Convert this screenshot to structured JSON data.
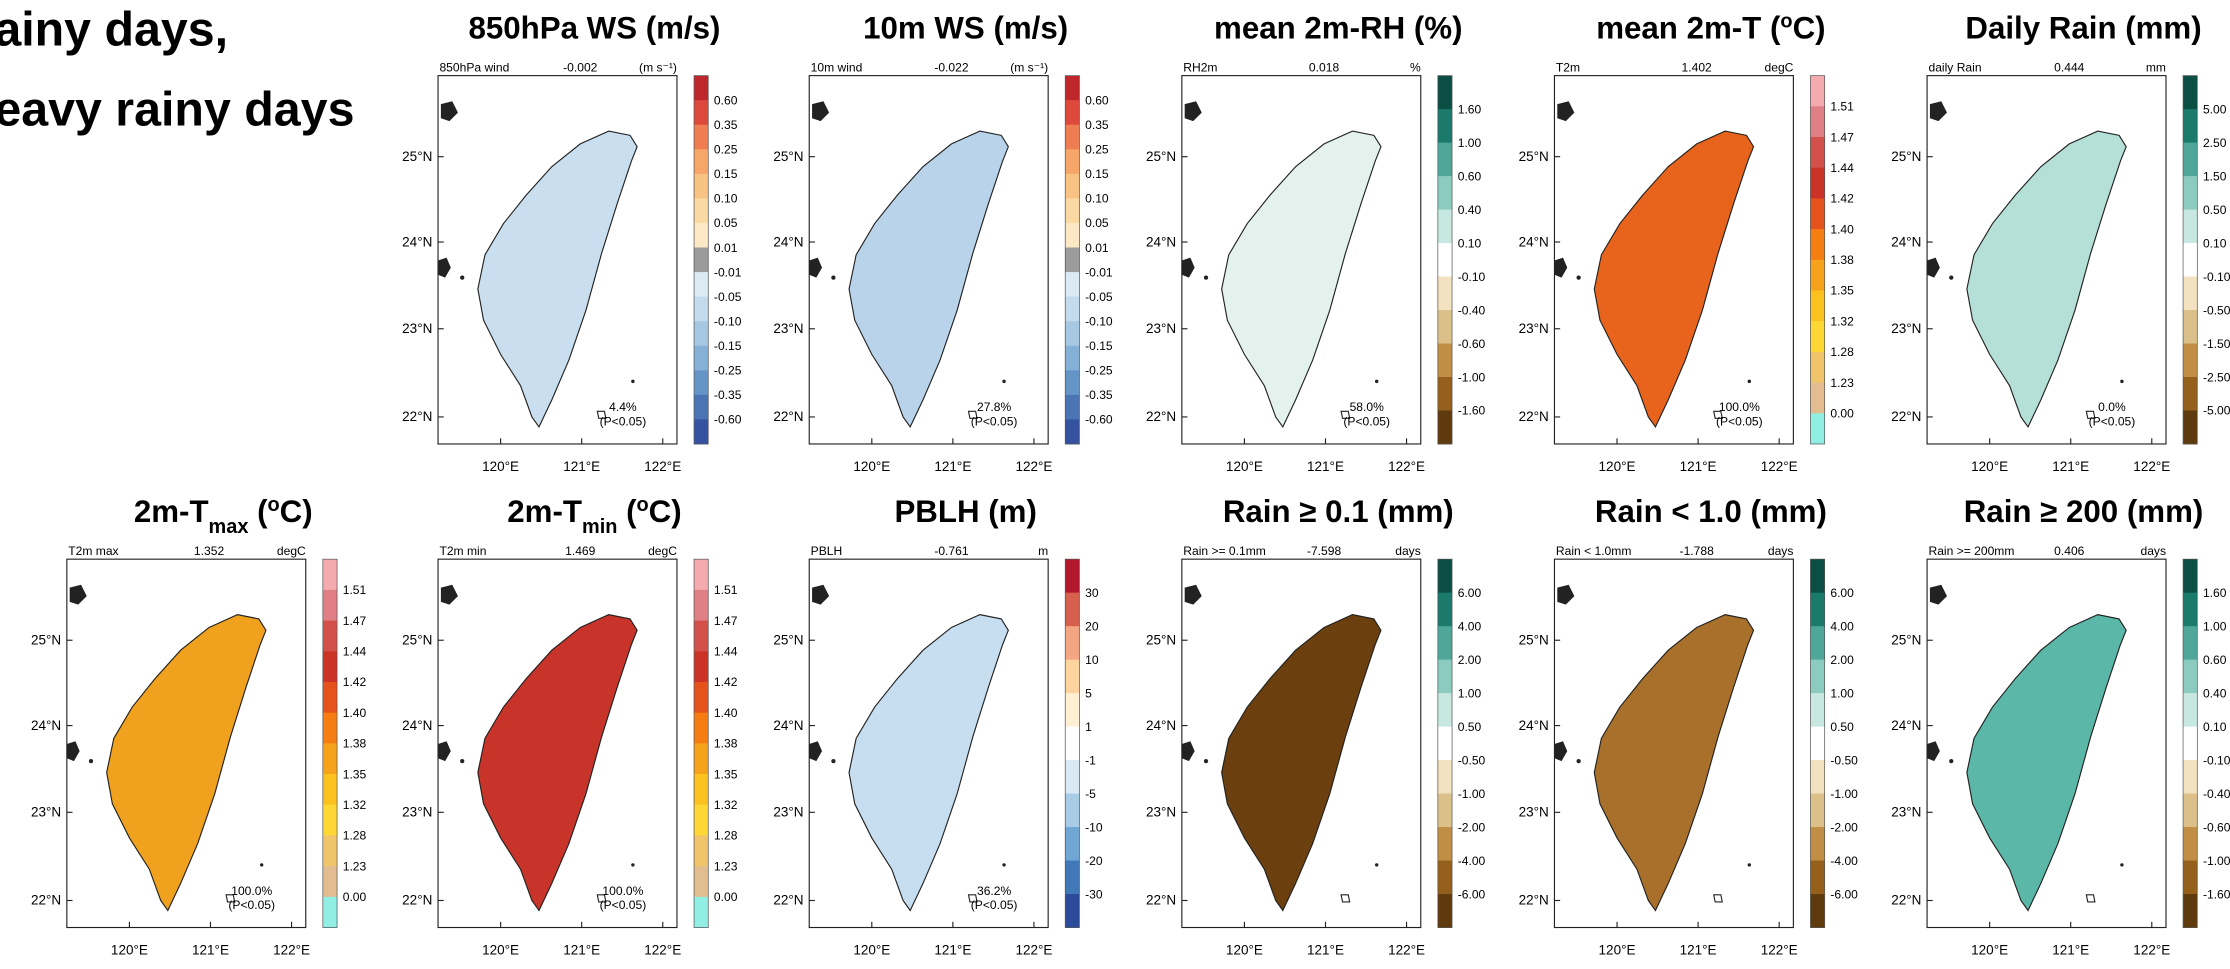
{
  "side_text": [
    "ainy days,",
    "eavy rainy days"
  ],
  "lat_labels": [
    "25°N",
    "24°N",
    "23°N",
    "22°N"
  ],
  "lon_labels": [
    "120°E",
    "121°E",
    "122°E"
  ],
  "sig_label": "(P<0.05)",
  "palettes": {
    "ws": [
      "#c0272d",
      "#dd4a3c",
      "#ef7d52",
      "#f5a668",
      "#f8c283",
      "#fbd9a3",
      "#fde8c5",
      "#9b9b9b",
      "#dceaf4",
      "#c3dbec",
      "#a6c8e2",
      "#86b1d6",
      "#6595c6",
      "#4a74b4",
      "#3552a0"
    ],
    "tb": [
      "#0b4f44",
      "#1a7a6b",
      "#4ea799",
      "#8ccbbf",
      "#c6e8e0",
      "#ffffff",
      "#f2e2bf",
      "#dcc08a",
      "#c08f45",
      "#95601c",
      "#5e3a0c"
    ],
    "temp": [
      "#f5aab0",
      "#e07f86",
      "#d3504b",
      "#cc3327",
      "#e6521c",
      "#f57d12",
      "#f7a21b",
      "#fbc21f",
      "#fdd835",
      "#f0c56a",
      "#e2bd8f",
      "#90eee3"
    ],
    "pblh": [
      "#b2182b",
      "#d6604d",
      "#f4a582",
      "#fdd49e",
      "#fff0d4",
      "#ffffff",
      "#d8e8f5",
      "#a9cce6",
      "#6fa6d4",
      "#4178b8",
      "#2c4a9a"
    ]
  },
  "panels": [
    {
      "title": [
        {
          "text": "850hPa WS (m/s)"
        }
      ],
      "header": "850hPa wind",
      "value": "-0.002",
      "unit": "(m s⁻¹)",
      "palette": "ws",
      "fill": "#c9dff0",
      "labels": [
        "0.60",
        "0.35",
        "0.25",
        "0.15",
        "0.10",
        "0.05",
        "0.01",
        "-0.01",
        "-0.05",
        "-0.10",
        "-0.15",
        "-0.25",
        "-0.35",
        "-0.60"
      ],
      "stat": "4.4%"
    },
    {
      "title": [
        {
          "text": "10m WS (m/s)"
        }
      ],
      "header": "10m wind",
      "value": "-0.022",
      "unit": "(m s⁻¹)",
      "palette": "ws",
      "fill": "#b9d4ea",
      "labels": [
        "0.60",
        "0.35",
        "0.25",
        "0.15",
        "0.10",
        "0.05",
        "0.01",
        "-0.01",
        "-0.05",
        "-0.10",
        "-0.15",
        "-0.25",
        "-0.35",
        "-0.60"
      ],
      "stat": "27.8%"
    },
    {
      "title": [
        {
          "text": "mean 2m-RH (%)"
        }
      ],
      "header": "RH2m",
      "value": "0.018",
      "unit": "%",
      "palette": "tb",
      "fill": "#e4f2ee",
      "labels": [
        "1.60",
        "1.00",
        "0.60",
        "0.40",
        "0.10",
        "-0.10",
        "-0.40",
        "-0.60",
        "-1.00",
        "-1.60"
      ],
      "stat": "58.0%"
    },
    {
      "title": [
        {
          "text": "mean 2m-T ("
        },
        {
          "text": "o",
          "style": "sup"
        },
        {
          "text": "C)"
        }
      ],
      "header": "T2m",
      "value": "1.402",
      "unit": "degC",
      "palette": "temp",
      "fill": "#e8641c",
      "labels": [
        "1.51",
        "1.47",
        "1.44",
        "1.42",
        "1.40",
        "1.38",
        "1.35",
        "1.32",
        "1.28",
        "1.23",
        "0.00"
      ],
      "stat": "100.0%"
    },
    {
      "title": [
        {
          "text": "Daily Rain (mm)"
        }
      ],
      "header": "daily Rain",
      "value": "0.444",
      "unit": "mm",
      "palette": "tb",
      "fill": "#b4e0d8",
      "labels": [
        "5.00",
        "2.50",
        "1.50",
        "0.50",
        "0.10",
        "-0.10",
        "-0.50",
        "-1.50",
        "-2.50",
        "-5.00"
      ],
      "stat": "0.0%"
    },
    {
      "title": [
        {
          "text": "2m-T"
        },
        {
          "text": "max",
          "style": "sub"
        },
        {
          "text": " ("
        },
        {
          "text": "o",
          "style": "sup"
        },
        {
          "text": "C)"
        }
      ],
      "header": "T2m max",
      "value": "1.352",
      "unit": "degC",
      "palette": "temp",
      "fill": "#f0a21e",
      "labels": [
        "1.51",
        "1.47",
        "1.44",
        "1.42",
        "1.40",
        "1.38",
        "1.35",
        "1.32",
        "1.28",
        "1.23",
        "0.00"
      ],
      "stat": "100.0%"
    },
    {
      "title": [
        {
          "text": "2m-T"
        },
        {
          "text": "min",
          "style": "sub"
        },
        {
          "text": " ("
        },
        {
          "text": "o",
          "style": "sup"
        },
        {
          "text": "C)"
        }
      ],
      "header": "T2m min",
      "value": "1.469",
      "unit": "degC",
      "palette": "temp",
      "fill": "#c8332a",
      "labels": [
        "1.51",
        "1.47",
        "1.44",
        "1.42",
        "1.40",
        "1.38",
        "1.35",
        "1.32",
        "1.28",
        "1.23",
        "0.00"
      ],
      "stat": "100.0%"
    },
    {
      "title": [
        {
          "text": "PBLH (m)"
        }
      ],
      "header": "PBLH",
      "value": "-0.761",
      "unit": "m",
      "palette": "pblh",
      "fill": "#c6def0",
      "labels": [
        "30",
        "20",
        "10",
        "5",
        "1",
        "-1",
        "-5",
        "-10",
        "-20",
        "-30"
      ],
      "stat": "36.2%"
    },
    {
      "title": [
        {
          "text": "Rain ≥ 0.1 (mm)"
        }
      ],
      "header": "Rain >= 0.1mm",
      "value": "-7.598",
      "unit": "days",
      "palette": "tb",
      "fill": "#6b3f0e",
      "labels": [
        "6.00",
        "4.00",
        "2.00",
        "1.00",
        "0.50",
        "-0.50",
        "-1.00",
        "-2.00",
        "-4.00",
        "-6.00"
      ]
    },
    {
      "title": [
        {
          "text": "Rain < 1.0 (mm)"
        }
      ],
      "header": "Rain < 1.0mm",
      "value": "-1.788",
      "unit": "days",
      "palette": "tb",
      "fill": "#a8702a",
      "labels": [
        "6.00",
        "4.00",
        "2.00",
        "1.00",
        "0.50",
        "-0.50",
        "-1.00",
        "-2.00",
        "-4.00",
        "-6.00"
      ]
    },
    {
      "title": [
        {
          "text": "Rain ≥ 200 (mm)"
        }
      ],
      "header": "Rain >= 200mm",
      "value": "0.406",
      "unit": "days",
      "palette": "tb",
      "fill": "#5bb8a8",
      "labels": [
        "1.60",
        "1.00",
        "0.60",
        "0.40",
        "0.10",
        "-0.10",
        "-0.40",
        "-0.60",
        "-1.00",
        "-1.60"
      ]
    }
  ]
}
